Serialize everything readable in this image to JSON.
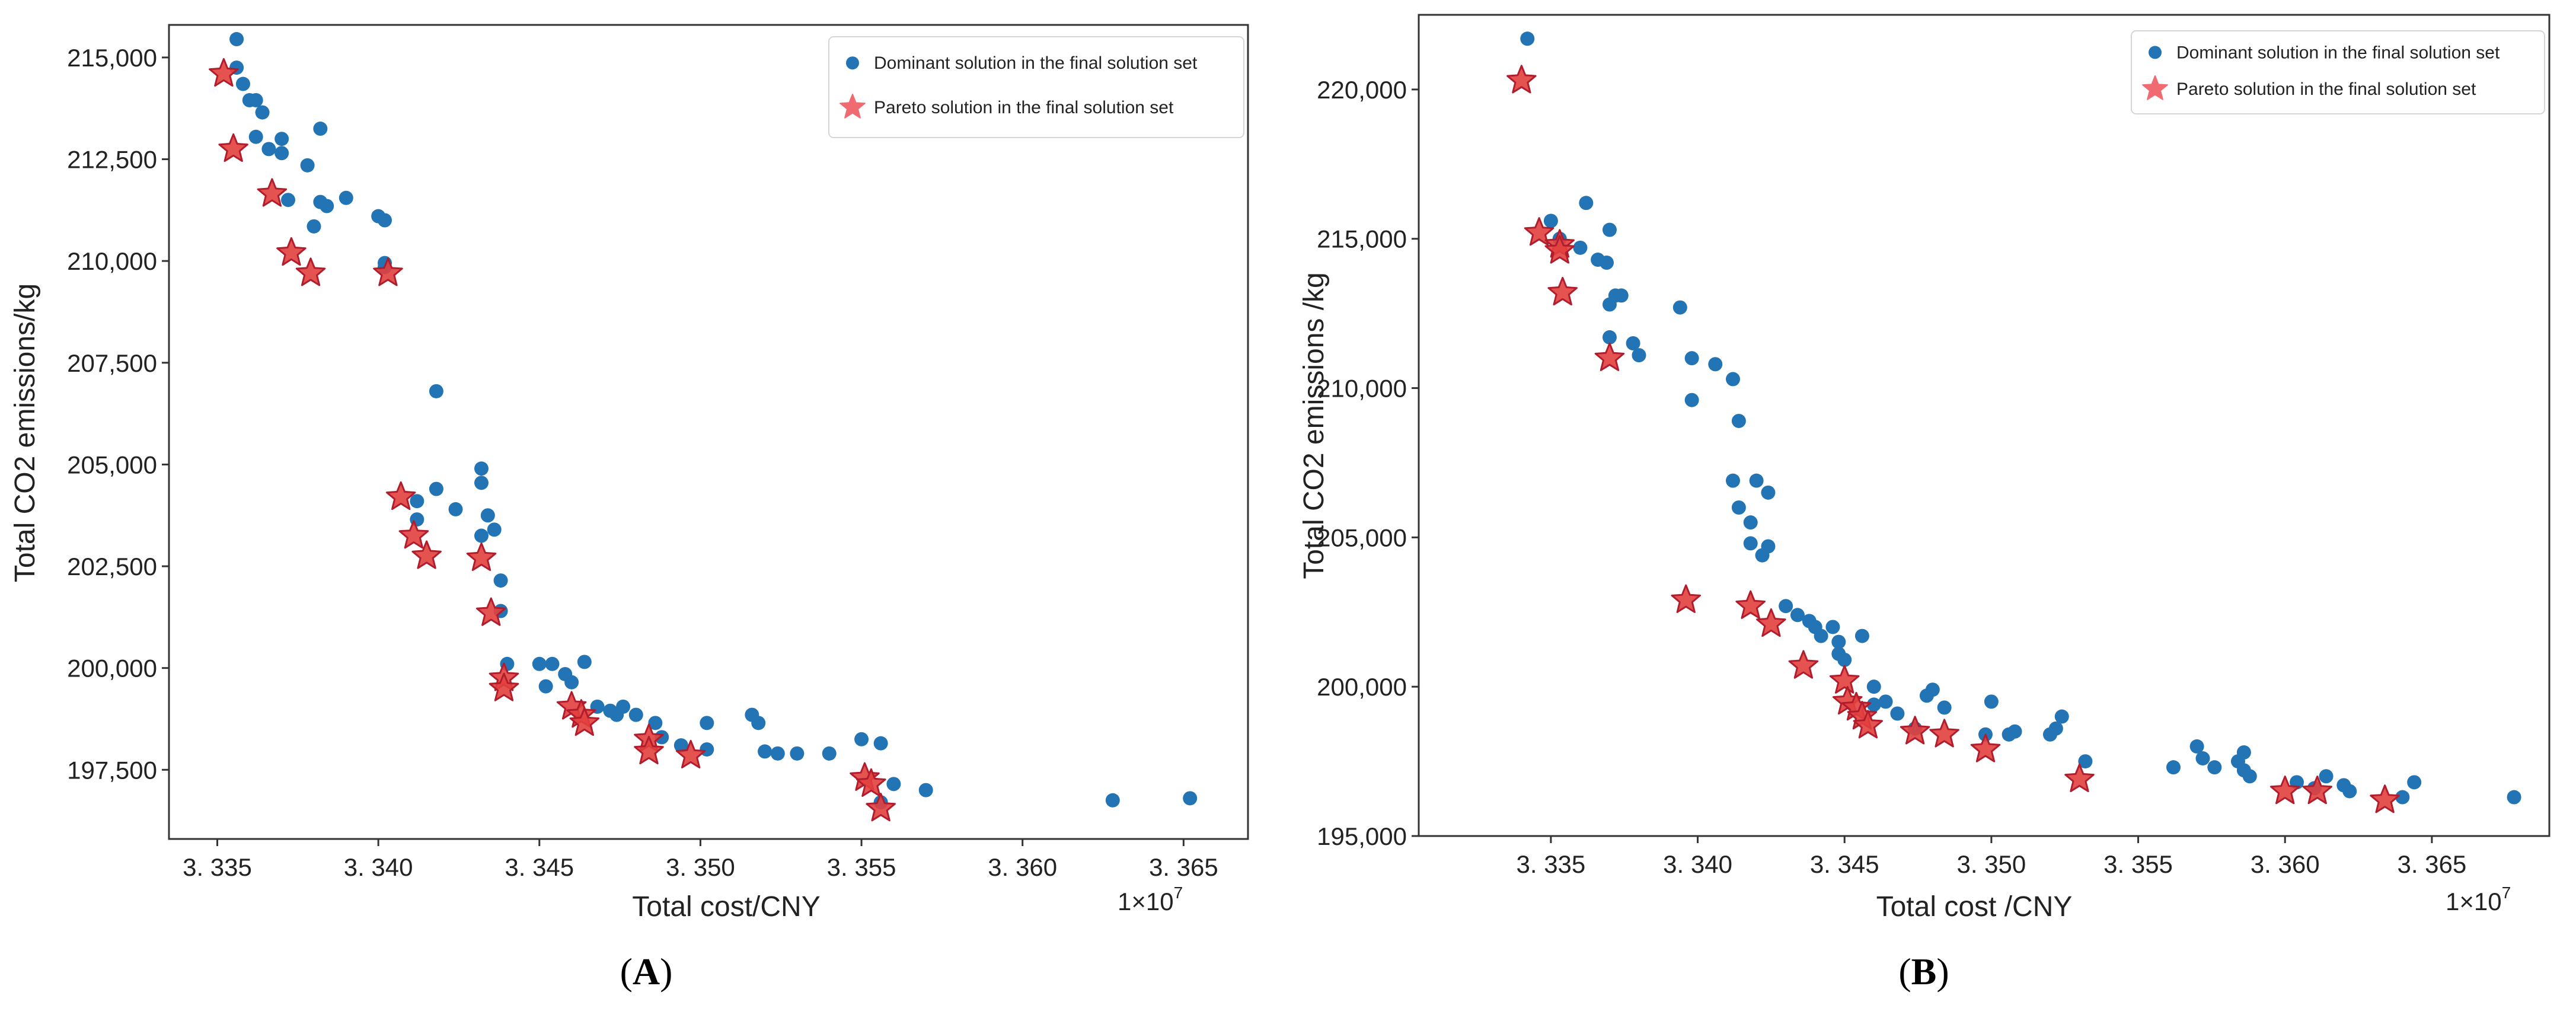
{
  "chart_data": [
    {
      "type": "scatter",
      "panel_label": "A",
      "xlabel": "Total cost/CNY",
      "ylabel": "Total CO2 emissions/kg",
      "x_multiplier": "1×10",
      "x_multiplier_exp": "7",
      "xlim": [
        3.3335,
        3.367
      ],
      "ylim": [
        195800,
        215800
      ],
      "xticks": [
        3.335,
        3.34,
        3.345,
        3.35,
        3.355,
        3.36,
        3.365
      ],
      "xtick_labels": [
        "3. 335",
        "3. 340",
        "3. 345",
        "3. 350",
        "3. 355",
        "3. 360",
        "3. 365"
      ],
      "yticks": [
        197500,
        200000,
        202500,
        205000,
        207500,
        210000,
        212500,
        215000
      ],
      "ytick_labels": [
        "197,500",
        "200,000",
        "202,500",
        "205,000",
        "207,500",
        "210,000",
        "212,500",
        "215,000"
      ],
      "legend_position": "top-right",
      "series": [
        {
          "name": "Dominant solution in the final solution set",
          "marker": "circle",
          "color": "#2374b4",
          "points": [
            [
              3.3356,
              215450
            ],
            [
              3.3356,
              214750
            ],
            [
              3.3358,
              214350
            ],
            [
              3.336,
              213950
            ],
            [
              3.3362,
              213950
            ],
            [
              3.3364,
              213650
            ],
            [
              3.3362,
              213050
            ],
            [
              3.3366,
              212750
            ],
            [
              3.337,
              212650
            ],
            [
              3.337,
              213000
            ],
            [
              3.3378,
              212350
            ],
            [
              3.3382,
              213250
            ],
            [
              3.3372,
              211500
            ],
            [
              3.3382,
              211450
            ],
            [
              3.3384,
              211350
            ],
            [
              3.339,
              211550
            ],
            [
              3.338,
              210850
            ],
            [
              3.34,
              211100
            ],
            [
              3.3402,
              211000
            ],
            [
              3.3402,
              209950
            ],
            [
              3.3402,
              209850
            ],
            [
              3.3418,
              206800
            ],
            [
              3.3412,
              204100
            ],
            [
              3.3418,
              204400
            ],
            [
              3.3412,
              203650
            ],
            [
              3.3424,
              203900
            ],
            [
              3.3432,
              204900
            ],
            [
              3.3432,
              204550
            ],
            [
              3.3434,
              203750
            ],
            [
              3.3432,
              203250
            ],
            [
              3.3436,
              203400
            ],
            [
              3.3438,
              202150
            ],
            [
              3.3438,
              201400
            ],
            [
              3.344,
              200100
            ],
            [
              3.345,
              200100
            ],
            [
              3.3452,
              199550
            ],
            [
              3.3454,
              200100
            ],
            [
              3.3458,
              199850
            ],
            [
              3.346,
              199650
            ],
            [
              3.3464,
              200150
            ],
            [
              3.3468,
              199050
            ],
            [
              3.3472,
              198950
            ],
            [
              3.3476,
              199050
            ],
            [
              3.3474,
              198850
            ],
            [
              3.348,
              198850
            ],
            [
              3.3486,
              198650
            ],
            [
              3.3488,
              198300
            ],
            [
              3.3494,
              198100
            ],
            [
              3.3502,
              198650
            ],
            [
              3.3502,
              198000
            ],
            [
              3.3516,
              198850
            ],
            [
              3.3518,
              198650
            ],
            [
              3.352,
              197950
            ],
            [
              3.3524,
              197900
            ],
            [
              3.353,
              197900
            ],
            [
              3.354,
              197900
            ],
            [
              3.355,
              198250
            ],
            [
              3.3556,
              198150
            ],
            [
              3.356,
              197150
            ],
            [
              3.3556,
              196700
            ],
            [
              3.357,
              197000
            ],
            [
              3.3628,
              196750
            ],
            [
              3.3652,
              196800
            ]
          ]
        },
        {
          "name": "Pareto solution in the final solution set",
          "marker": "star",
          "color": "#e2403e",
          "points": [
            [
              3.3352,
              214600
            ],
            [
              3.3355,
              212750
            ],
            [
              3.3367,
              211650
            ],
            [
              3.3373,
              210200
            ],
            [
              3.3379,
              209700
            ],
            [
              3.3403,
              209700
            ],
            [
              3.3407,
              204200
            ],
            [
              3.3411,
              203250
            ],
            [
              3.3415,
              202750
            ],
            [
              3.3432,
              202700
            ],
            [
              3.3435,
              201350
            ],
            [
              3.3439,
              199750
            ],
            [
              3.3439,
              199500
            ],
            [
              3.346,
              199050
            ],
            [
              3.3463,
              198850
            ],
            [
              3.3464,
              198650
            ],
            [
              3.3484,
              198250
            ],
            [
              3.3484,
              197950
            ],
            [
              3.3497,
              197850
            ],
            [
              3.3551,
              197300
            ],
            [
              3.3553,
              197150
            ],
            [
              3.3556,
              196550
            ]
          ]
        }
      ]
    },
    {
      "type": "scatter",
      "panel_label": "B",
      "xlabel": "Total cost /CNY",
      "ylabel": "Total CO2 emissions /kg",
      "x_multiplier": "1×10",
      "x_multiplier_exp": "7",
      "xlim": [
        3.3305,
        3.369
      ],
      "ylim": [
        195000,
        222500
      ],
      "xticks": [
        3.335,
        3.34,
        3.345,
        3.35,
        3.355,
        3.36,
        3.365
      ],
      "xtick_labels": [
        "3. 335",
        "3. 340",
        "3. 345",
        "3. 350",
        "3. 355",
        "3. 360",
        "3. 365"
      ],
      "yticks": [
        195000,
        200000,
        205000,
        210000,
        215000,
        220000
      ],
      "ytick_labels": [
        "195,000",
        "200,000",
        "205,000",
        "210,000",
        "215,000",
        "220,000"
      ],
      "legend_position": "top-right",
      "series": [
        {
          "name": "Dominant solution in the final solution set",
          "marker": "circle",
          "color": "#2374b4",
          "points": [
            [
              3.3342,
              221700
            ],
            [
              3.335,
              215600
            ],
            [
              3.3353,
              215000
            ],
            [
              3.336,
              214700
            ],
            [
              3.3362,
              216200
            ],
            [
              3.3366,
              214300
            ],
            [
              3.3369,
              214200
            ],
            [
              3.337,
              215300
            ],
            [
              3.3372,
              213100
            ],
            [
              3.337,
              212800
            ],
            [
              3.3374,
              213100
            ],
            [
              3.337,
              211700
            ],
            [
              3.3378,
              211500
            ],
            [
              3.338,
              211100
            ],
            [
              3.3394,
              212700
            ],
            [
              3.3398,
              211000
            ],
            [
              3.3398,
              209600
            ],
            [
              3.3406,
              210800
            ],
            [
              3.3412,
              210300
            ],
            [
              3.3414,
              208900
            ],
            [
              3.3412,
              206900
            ],
            [
              3.3414,
              206000
            ],
            [
              3.3418,
              205500
            ],
            [
              3.3418,
              204800
            ],
            [
              3.342,
              206900
            ],
            [
              3.3424,
              206500
            ],
            [
              3.3424,
              204700
            ],
            [
              3.3422,
              204400
            ],
            [
              3.343,
              202700
            ],
            [
              3.3434,
              202400
            ],
            [
              3.3438,
              202200
            ],
            [
              3.344,
              202000
            ],
            [
              3.3442,
              201700
            ],
            [
              3.3446,
              202000
            ],
            [
              3.3448,
              201500
            ],
            [
              3.3448,
              201100
            ],
            [
              3.345,
              200900
            ],
            [
              3.3456,
              201700
            ],
            [
              3.346,
              200000
            ],
            [
              3.346,
              199400
            ],
            [
              3.3464,
              199500
            ],
            [
              3.3468,
              199100
            ],
            [
              3.3474,
              198600
            ],
            [
              3.3478,
              199700
            ],
            [
              3.348,
              199900
            ],
            [
              3.3484,
              199300
            ],
            [
              3.3498,
              198400
            ],
            [
              3.35,
              199500
            ],
            [
              3.3506,
              198400
            ],
            [
              3.3508,
              198500
            ],
            [
              3.352,
              198400
            ],
            [
              3.3522,
              198600
            ],
            [
              3.3524,
              199000
            ],
            [
              3.3532,
              197500
            ],
            [
              3.3562,
              197300
            ],
            [
              3.357,
              198000
            ],
            [
              3.3572,
              197600
            ],
            [
              3.3576,
              197300
            ],
            [
              3.3584,
              197500
            ],
            [
              3.3586,
              197800
            ],
            [
              3.3586,
              197200
            ],
            [
              3.3588,
              197000
            ],
            [
              3.3604,
              196800
            ],
            [
              3.361,
              196600
            ],
            [
              3.3614,
              197000
            ],
            [
              3.362,
              196700
            ],
            [
              3.3622,
              196500
            ],
            [
              3.364,
              196300
            ],
            [
              3.3644,
              196800
            ],
            [
              3.3678,
              196300
            ]
          ]
        },
        {
          "name": "Pareto solution in the final solution set",
          "marker": "star",
          "color": "#e2403e",
          "points": [
            [
              3.334,
              220300
            ],
            [
              3.3346,
              215200
            ],
            [
              3.3353,
              214800
            ],
            [
              3.3353,
              214600
            ],
            [
              3.3354,
              213200
            ],
            [
              3.337,
              211000
            ],
            [
              3.3396,
              202900
            ],
            [
              3.3418,
              202700
            ],
            [
              3.3425,
              202100
            ],
            [
              3.3436,
              200700
            ],
            [
              3.345,
              200200
            ],
            [
              3.3451,
              199500
            ],
            [
              3.3454,
              199300
            ],
            [
              3.3456,
              199000
            ],
            [
              3.3458,
              198700
            ],
            [
              3.3474,
              198500
            ],
            [
              3.3484,
              198400
            ],
            [
              3.3498,
              197900
            ],
            [
              3.353,
              196900
            ],
            [
              3.36,
              196500
            ],
            [
              3.3611,
              196500
            ],
            [
              3.3634,
              196200
            ]
          ]
        }
      ]
    }
  ]
}
